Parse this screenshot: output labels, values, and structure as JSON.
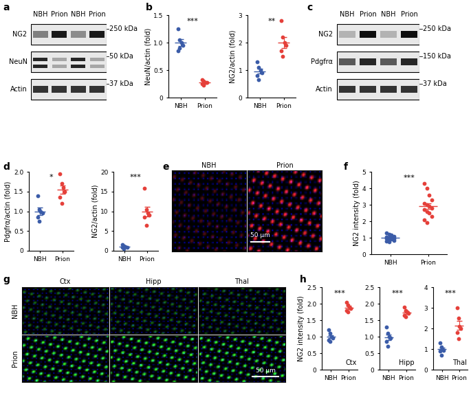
{
  "panel_letters": [
    "a",
    "b",
    "c",
    "d",
    "e",
    "f",
    "g",
    "h"
  ],
  "blots": [
    {
      "lanes": [
        "NBH",
        "Prion",
        "NBH",
        "Prion"
      ],
      "rows": [
        {
          "name": "NG2",
          "size": "250 kDa"
        },
        {
          "name": "NeuN",
          "size": "50 kDa"
        },
        {
          "name": "Actin",
          "size": "37 kDa"
        }
      ]
    },
    {
      "lanes": [
        "NBH",
        "Prion",
        "NBH",
        "Prion"
      ],
      "rows": [
        {
          "name": "NG2",
          "size": "250 kDa"
        },
        {
          "name": "Pdgfrα",
          "size": "150 kDa"
        },
        {
          "name": "Actin",
          "size": "37 kDa"
        }
      ]
    }
  ],
  "images": {
    "e": {
      "columns": [
        "NBH",
        "Prion"
      ],
      "scale_bar": "50 μm"
    },
    "g": {
      "columns": [
        "Ctx",
        "Hipp",
        "Thal"
      ],
      "rows": [
        "NBH",
        "Prion"
      ],
      "scale_bar": "50 μm"
    }
  },
  "chart_data": [
    {
      "type": "scatter",
      "categories": [
        "NBH",
        "Prion"
      ],
      "ylabel": "NeuN/actin (fold)",
      "values": [
        [
          1.25,
          1.05,
          1.0,
          0.95,
          0.85,
          0.9
        ],
        [
          0.33,
          0.3,
          0.28,
          0.27,
          0.25,
          0.22
        ]
      ],
      "mean": [
        1.0,
        0.27
      ],
      "error": [
        0.06,
        0.02
      ],
      "colors": [
        "#3b5ca8",
        "#e5403a"
      ],
      "ylim": [
        0,
        1.5
      ],
      "yticks": [
        0,
        0.5,
        1.0,
        1.5
      ],
      "annotations": [
        "***"
      ]
    },
    {
      "type": "scatter",
      "categories": [
        "NBH",
        "Prion"
      ],
      "ylabel": "NG2/actin (fold)",
      "values": [
        [
          1.3,
          1.1,
          1.0,
          0.9,
          0.8,
          0.65
        ],
        [
          2.8,
          2.2,
          2.0,
          1.9,
          1.7,
          1.5
        ]
      ],
      "mean": [
        0.96,
        2.0
      ],
      "error": [
        0.09,
        0.19
      ],
      "colors": [
        "#3b5ca8",
        "#e5403a"
      ],
      "ylim": [
        0,
        3
      ],
      "yticks": [
        0,
        1,
        2,
        3
      ],
      "annotations": [
        "**"
      ]
    },
    {
      "type": "scatter",
      "categories": [
        "NBH",
        "Prion"
      ],
      "ylabel": "Pdgfrα/actin (fold)",
      "values": [
        [
          1.4,
          1.05,
          1.0,
          0.95,
          0.85,
          0.75
        ],
        [
          1.95,
          1.7,
          1.6,
          1.5,
          1.35,
          1.2
        ]
      ],
      "mean": [
        1.0,
        1.55
      ],
      "error": [
        0.09,
        0.11
      ],
      "colors": [
        "#3b5ca8",
        "#e5403a"
      ],
      "ylim": [
        0,
        2.0
      ],
      "yticks": [
        0,
        0.5,
        1.0,
        1.5,
        2.0
      ],
      "annotations": [
        "*"
      ]
    },
    {
      "type": "scatter",
      "categories": [
        "NBH",
        "Prion"
      ],
      "ylabel": "NG2/actin (fold)",
      "values": [
        [
          1.5,
          1.2,
          1.0,
          0.9,
          0.8,
          0.6
        ],
        [
          15.8,
          10.5,
          9.5,
          9.0,
          8.5,
          6.5
        ]
      ],
      "mean": [
        1.0,
        9.9
      ],
      "error": [
        0.13,
        1.2
      ],
      "colors": [
        "#3b5ca8",
        "#e5403a"
      ],
      "ylim": [
        0,
        20
      ],
      "yticks": [
        0,
        5,
        10,
        15,
        20
      ],
      "annotations": [
        "***"
      ]
    },
    {
      "type": "scatter",
      "categories": [
        "NBH",
        "Prion"
      ],
      "ylabel": "NG2 intensity (fold)",
      "values": [
        [
          1.3,
          1.2,
          1.15,
          1.1,
          1.05,
          1.0,
          1.0,
          0.95,
          0.95,
          0.9,
          0.9,
          0.85,
          0.8,
          0.75
        ],
        [
          4.3,
          4.0,
          3.6,
          3.3,
          3.1,
          3.0,
          2.9,
          2.8,
          2.7,
          2.6,
          2.5,
          2.3,
          2.1,
          1.9
        ]
      ],
      "mean": [
        1.0,
        2.9
      ],
      "error": [
        0.05,
        0.17
      ],
      "colors": [
        "#3b5ca8",
        "#e5403a"
      ],
      "ylim": [
        0,
        5
      ],
      "yticks": [
        0,
        1,
        2,
        3,
        4,
        5
      ],
      "annotations": [
        "***"
      ]
    },
    {
      "type": "scatter",
      "categories": [
        "NBH",
        "Prion"
      ],
      "ylabel": "NG2 intensity (fold)",
      "values": [
        [
          1.2,
          1.1,
          1.0,
          0.95,
          0.9,
          0.85
        ],
        [
          2.05,
          1.95,
          1.9,
          1.85,
          1.8,
          1.75
        ]
      ],
      "mean": [
        1.0,
        1.88
      ],
      "error": [
        0.05,
        0.05
      ],
      "colors": [
        "#3b5ca8",
        "#e5403a"
      ],
      "ylim": [
        0,
        2.5
      ],
      "yticks": [
        0,
        0.5,
        1.0,
        1.5,
        2.0,
        2.5
      ],
      "annotations": [
        "***",
        "Ctx"
      ]
    },
    {
      "type": "scatter",
      "categories": [
        "NBH",
        "Prion"
      ],
      "values": [
        [
          1.3,
          1.1,
          1.0,
          0.95,
          0.85,
          0.7
        ],
        [
          1.9,
          1.8,
          1.75,
          1.7,
          1.65,
          1.6
        ]
      ],
      "mean": [
        0.98,
        1.73
      ],
      "error": [
        0.08,
        0.05
      ],
      "colors": [
        "#3b5ca8",
        "#e5403a"
      ],
      "ylim": [
        0,
        2.5
      ],
      "yticks": [
        0,
        0.5,
        1.0,
        1.5,
        2.0,
        2.5
      ],
      "annotations": [
        "***",
        "Hipp"
      ]
    },
    {
      "type": "scatter",
      "categories": [
        "NBH",
        "Prion"
      ],
      "values": [
        [
          1.3,
          1.1,
          1.0,
          0.95,
          0.9,
          0.7
        ],
        [
          3.0,
          2.5,
          2.1,
          2.0,
          1.8,
          1.5
        ]
      ],
      "mean": [
        1.0,
        2.15
      ],
      "error": [
        0.08,
        0.21
      ],
      "colors": [
        "#3b5ca8",
        "#e5403a"
      ],
      "ylim": [
        0,
        4
      ],
      "yticks": [
        0,
        1,
        2,
        3,
        4
      ],
      "annotations": [
        "***",
        "Thal"
      ]
    }
  ]
}
